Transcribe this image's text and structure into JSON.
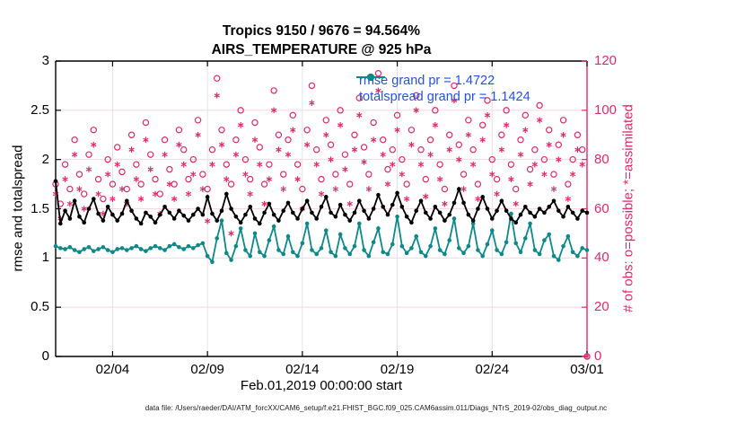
{
  "title": {
    "line1": "Tropics 9150 / 9676 = 94.564%",
    "line2": "AIRS_TEMPERATURE @ 925 hPa"
  },
  "footer": {
    "data_file": "data file: /Users/raeder/DAI/ATM_forcXX/CAM6_setup/f.e21.FHIST_BGC.f09_025.CAM6assim.011/Diags_NTrS_2019-02/obs_diag_output.nc"
  },
  "colors": {
    "rmse_line": "#000000",
    "totalspread_line": "#0E8989",
    "obs_markers": "#E1286B",
    "legend_text": "#2551E0",
    "grid_horizontal": "#F5D8E1",
    "grid_vertical": "#E6E1E3",
    "axis_left_bottom_top": "#000000",
    "axis_right": "#E1286B"
  },
  "chart_data": {
    "type": "line",
    "title": "Tropics 9150 / 9676 = 94.564%",
    "subtitle": "AIRS_TEMPERATURE @ 925 hPa",
    "xlabel": "Feb.01,2019 00:00:00 start",
    "ylabel_left": "rmse and totalspread",
    "ylabel_right": "# of obs: o=possible; *=assimilated",
    "x_tick_labels": [
      "02/04",
      "02/09",
      "02/14",
      "02/19",
      "02/24",
      "03/01"
    ],
    "x_tick_days": [
      3,
      8,
      13,
      18,
      23,
      28
    ],
    "x_range_days": [
      0,
      28
    ],
    "x_start_day": 0,
    "x_step_days": 0.25,
    "ylim_left": [
      0,
      3
    ],
    "yticks_left": [
      0,
      0.5,
      1,
      1.5,
      2,
      2.5,
      3
    ],
    "ytick_labels_left": [
      "0",
      "0.5",
      "1",
      "1.5",
      "2",
      "2.5",
      "3"
    ],
    "ylim_right": [
      0,
      120
    ],
    "yticks_right": [
      0,
      20,
      40,
      60,
      80,
      100,
      120
    ],
    "ytick_labels_right": [
      "0",
      "20",
      "40",
      "60",
      "80",
      "100",
      "120"
    ],
    "grid": true,
    "legend_position": "top-right-inside",
    "legend": [
      {
        "label": "rmse grand pr = 1.4722",
        "color": "#000000",
        "marker": "filled-circle"
      },
      {
        "label": "totalspread grand pr = 1.1424",
        "color": "#0E8989",
        "marker": "filled-circle"
      }
    ],
    "series": [
      {
        "name": "rmse",
        "axis": "left",
        "color": "#000000",
        "marker": "filled-circle",
        "line": true,
        "values": [
          1.78,
          1.35,
          1.48,
          1.4,
          1.58,
          1.42,
          1.36,
          1.5,
          1.6,
          1.45,
          1.38,
          1.52,
          1.44,
          1.38,
          1.45,
          1.58,
          1.48,
          1.4,
          1.35,
          1.46,
          1.42,
          1.36,
          1.44,
          1.52,
          1.46,
          1.4,
          1.48,
          1.43,
          1.38,
          1.44,
          1.5,
          1.44,
          1.62,
          1.45,
          1.38,
          1.48,
          1.65,
          1.5,
          1.42,
          1.36,
          1.44,
          1.52,
          1.4,
          1.35,
          1.46,
          1.55,
          1.44,
          1.38,
          1.48,
          1.56,
          1.46,
          1.4,
          1.5,
          1.58,
          1.46,
          1.4,
          1.52,
          1.62,
          1.46,
          1.42,
          1.54,
          1.44,
          1.38,
          1.46,
          1.58,
          1.48,
          1.4,
          1.5,
          1.64,
          1.52,
          1.44,
          1.54,
          1.66,
          1.52,
          1.42,
          1.36,
          1.48,
          1.58,
          1.46,
          1.4,
          1.52,
          1.46,
          1.38,
          1.44,
          1.56,
          1.7,
          1.56,
          1.44,
          1.38,
          1.5,
          1.62,
          1.5,
          1.4,
          1.48,
          1.58,
          1.48,
          1.4,
          1.36,
          1.44,
          1.52,
          1.46,
          1.42,
          1.5,
          1.46,
          1.52,
          1.58,
          1.48,
          1.42,
          1.52,
          1.46,
          1.4,
          1.48,
          1.46
        ]
      },
      {
        "name": "totalspread",
        "axis": "left",
        "color": "#0E8989",
        "marker": "filled-circle",
        "line": true,
        "values": [
          1.12,
          1.1,
          1.09,
          1.11,
          1.08,
          1.06,
          1.09,
          1.11,
          1.07,
          1.09,
          1.11,
          1.08,
          1.06,
          1.09,
          1.1,
          1.08,
          1.1,
          1.12,
          1.09,
          1.07,
          1.1,
          1.12,
          1.1,
          1.08,
          1.12,
          1.14,
          1.11,
          1.09,
          1.12,
          1.1,
          1.13,
          1.15,
          1.02,
          0.96,
          1.2,
          1.38,
          1.05,
          0.98,
          1.12,
          1.3,
          1.08,
          1.02,
          1.25,
          1.06,
          1.02,
          1.18,
          1.32,
          1.08,
          1.04,
          1.22,
          1.06,
          1.02,
          1.15,
          1.35,
          1.08,
          1.04,
          1.1,
          1.28,
          1.06,
          1.02,
          1.24,
          1.1,
          1.04,
          1.12,
          1.35,
          1.08,
          1.02,
          1.16,
          1.3,
          1.06,
          1.04,
          1.14,
          1.42,
          1.12,
          1.05,
          1.1,
          1.22,
          1.06,
          1.02,
          1.12,
          1.3,
          1.08,
          1.04,
          1.18,
          1.4,
          1.1,
          1.05,
          1.12,
          1.35,
          1.08,
          1.02,
          1.14,
          1.28,
          1.08,
          1.04,
          1.16,
          1.45,
          1.15,
          1.06,
          1.2,
          1.35,
          1.08,
          1.04,
          1.18,
          1.24,
          1.02,
          0.98,
          1.12,
          1.22,
          1.06,
          1.02,
          1.1,
          1.08
        ]
      },
      {
        "name": "possible_obs",
        "axis": "right",
        "color": "#E1286B",
        "marker": "open-circle",
        "line": false,
        "values": [
          70,
          62,
          78,
          68,
          88,
          74,
          66,
          82,
          92,
          72,
          64,
          80,
          70,
          85,
          75,
          68,
          90,
          78,
          70,
          95,
          82,
          72,
          66,
          88,
          76,
          70,
          92,
          84,
          72,
          80,
          96,
          74,
          68,
          84,
          113,
          92,
          78,
          70,
          88,
          100,
          80,
          72,
          95,
          85,
          70,
          78,
          108,
          90,
          74,
          88,
          98,
          78,
          68,
          92,
          110,
          84,
          72,
          96,
          86,
          74,
          100,
          82,
          70,
          90,
          105,
          85,
          74,
          95,
          115,
          88,
          76,
          84,
          98,
          80,
          70,
          92,
          106,
          84,
          72,
          88,
          100,
          78,
          68,
          90,
          110,
          86,
          74,
          96,
          84,
          70,
          94,
          104,
          80,
          72,
          90,
          100,
          78,
          68,
          88,
          98,
          76,
          84,
          102,
          80,
          92,
          74,
          86,
          96,
          70,
          80,
          90,
          84,
          0
        ]
      },
      {
        "name": "assimilated_obs",
        "axis": "right",
        "color": "#E1286B",
        "marker": "asterisk",
        "line": false,
        "values": [
          66,
          56,
          72,
          62,
          82,
          68,
          60,
          76,
          86,
          66,
          58,
          74,
          64,
          78,
          68,
          62,
          84,
          72,
          64,
          88,
          76,
          66,
          58,
          82,
          70,
          64,
          86,
          78,
          66,
          74,
          90,
          68,
          55,
          78,
          106,
          86,
          72,
          50,
          82,
          94,
          74,
          66,
          88,
          78,
          62,
          72,
          100,
          84,
          68,
          82,
          92,
          72,
          60,
          86,
          103,
          78,
          66,
          90,
          80,
          68,
          94,
          76,
          62,
          84,
          98,
          79,
          68,
          88,
          108,
          82,
          70,
          78,
          92,
          74,
          64,
          86,
          100,
          78,
          65,
          82,
          94,
          72,
          62,
          84,
          104,
          80,
          68,
          90,
          78,
          64,
          88,
          98,
          74,
          66,
          84,
          94,
          72,
          62,
          82,
          92,
          70,
          78,
          96,
          74,
          86,
          68,
          80,
          90,
          64,
          74,
          84,
          78,
          0
        ]
      }
    ]
  }
}
